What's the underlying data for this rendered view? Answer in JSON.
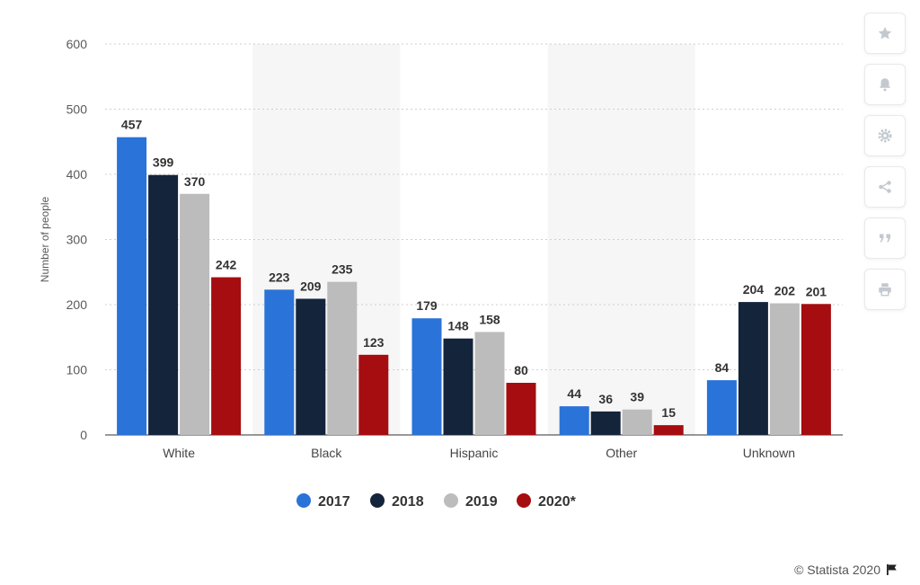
{
  "chart_data": {
    "type": "bar",
    "categories": [
      "White",
      "Black",
      "Hispanic",
      "Other",
      "Unknown"
    ],
    "series": [
      {
        "name": "2017",
        "color": "#2a73d8",
        "values": [
          457,
          223,
          179,
          44,
          84
        ]
      },
      {
        "name": "2018",
        "color": "#13243b",
        "values": [
          399,
          209,
          148,
          36,
          204
        ]
      },
      {
        "name": "2019",
        "color": "#bcbcbc",
        "values": [
          370,
          235,
          158,
          39,
          202
        ]
      },
      {
        "name": "2020*",
        "color": "#a50d10",
        "values": [
          242,
          123,
          80,
          15,
          201
        ]
      }
    ],
    "ylabel": "Number of people",
    "xlabel": "",
    "ylim": [
      0,
      600
    ],
    "yticks": [
      0,
      100,
      200,
      300,
      400,
      500,
      600
    ],
    "grid": true,
    "legend": "bottom",
    "data_labels": true
  },
  "toolbar": {
    "buttons": [
      {
        "name": "favorite-button",
        "icon": "star-icon"
      },
      {
        "name": "notification-button",
        "icon": "bell-icon"
      },
      {
        "name": "settings-button",
        "icon": "gear-icon"
      },
      {
        "name": "share-button",
        "icon": "share-icon"
      },
      {
        "name": "cite-button",
        "icon": "quote-icon"
      },
      {
        "name": "print-button",
        "icon": "print-icon"
      }
    ]
  },
  "footer": {
    "credit": "© Statista 2020"
  }
}
